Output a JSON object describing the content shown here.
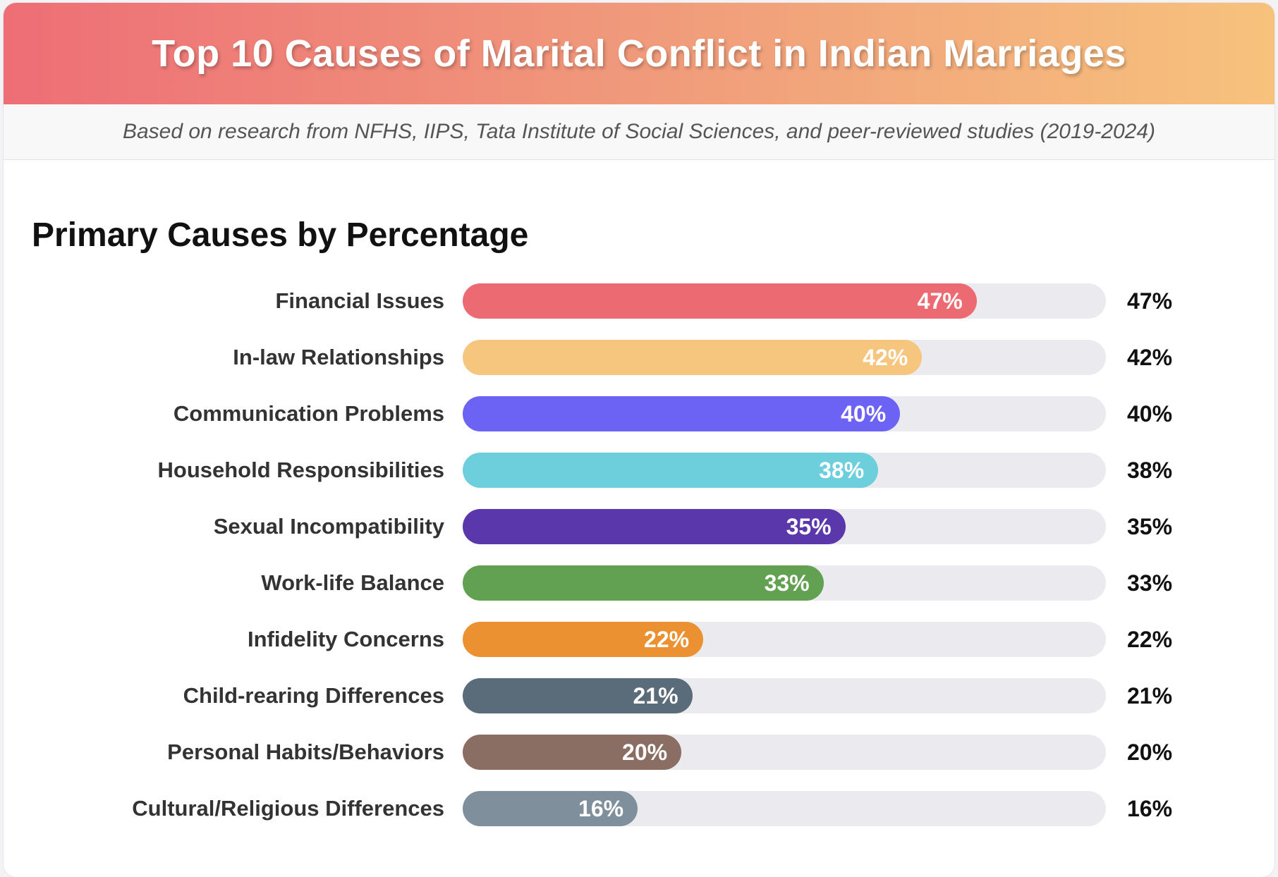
{
  "header": {
    "title": "Top 10 Causes of Marital Conflict in Indian Marriages",
    "subtitle": "Based on research from NFHS, IIPS, Tata Institute of Social Sciences, and peer-reviewed studies (2019-2024)"
  },
  "section": {
    "title": "Primary Causes by Percentage"
  },
  "chart_data": {
    "type": "bar",
    "orientation": "horizontal",
    "title": "Primary Causes by Percentage",
    "unit": "%",
    "xlim": [
      0,
      100
    ],
    "grid": false,
    "categories": [
      "Financial Issues",
      "In-law Relationships",
      "Communication Problems",
      "Household Responsibilities",
      "Sexual Incompatibility",
      "Work-life Balance",
      "Infidelity Concerns",
      "Child-rearing Differences",
      "Personal Habits/Behaviors",
      "Cultural/Religious Differences"
    ],
    "values": [
      47,
      42,
      40,
      38,
      35,
      33,
      22,
      21,
      20,
      16
    ],
    "labels": [
      "47%",
      "42%",
      "40%",
      "38%",
      "35%",
      "33%",
      "22%",
      "21%",
      "20%",
      "16%"
    ],
    "colors": [
      "#ec6b72",
      "#f6c67e",
      "#6c63f5",
      "#6ccfdb",
      "#5a38ab",
      "#62a152",
      "#ec9131",
      "#5a6b79",
      "#8a6e64",
      "#7f909c"
    ]
  }
}
